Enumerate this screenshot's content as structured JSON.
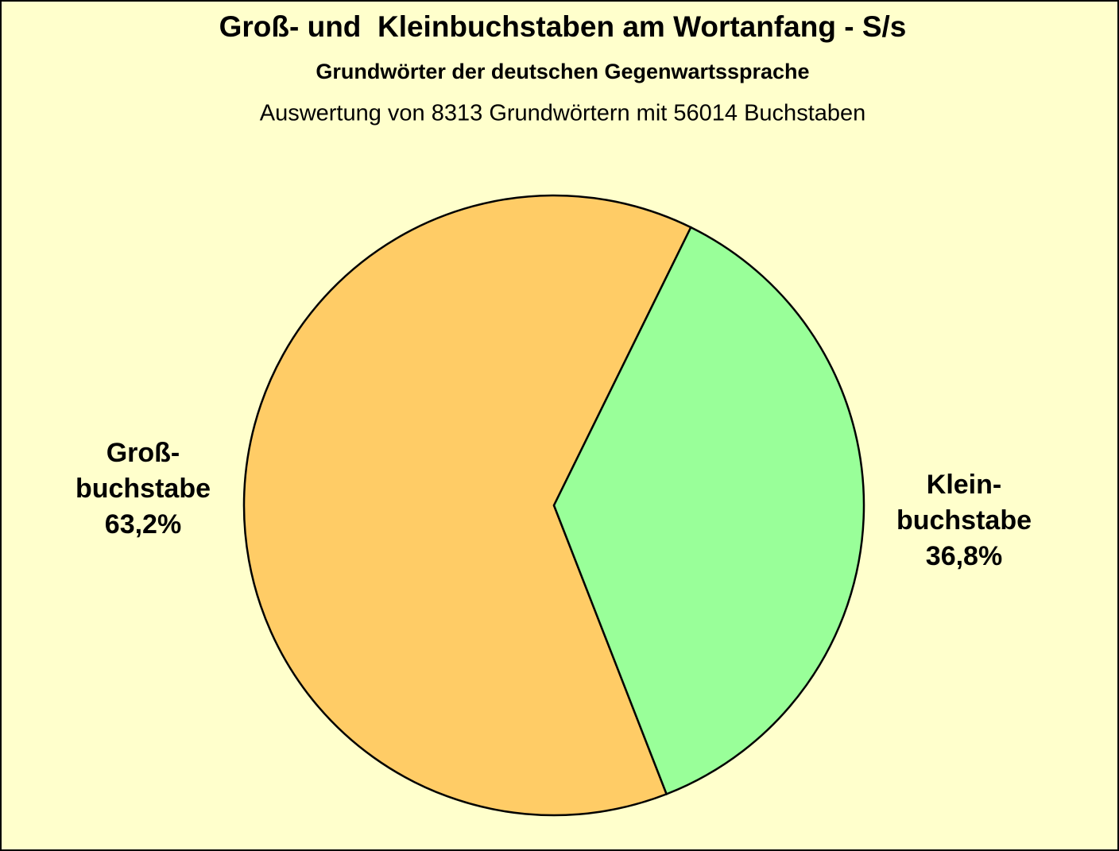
{
  "chart_data": {
    "type": "pie",
    "title": "Groß- und  Kleinbuchstaben am Wortanfang - S/s",
    "subtitle": "Grundwörter der deutschen Gegenwartssprache",
    "note": "Auswertung von 8313 Grundwörtern mit 56014 Buchstaben",
    "categories": [
      [
        "Groß-",
        "buchstabe"
      ],
      [
        "Klein-",
        "buchstabe"
      ]
    ],
    "values": [
      63.2,
      36.8
    ],
    "value_labels": [
      "63,2%",
      "36,8%"
    ],
    "colors": [
      "#ffcc66",
      "#99ff99"
    ]
  }
}
